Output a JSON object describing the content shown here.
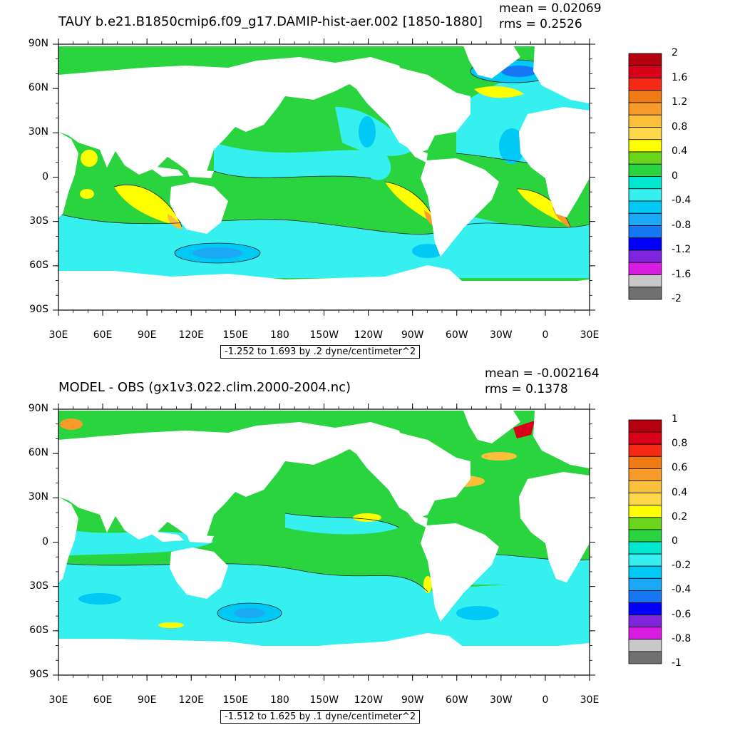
{
  "panels": [
    {
      "title": "TAUY b.e21.B1850cmip6.f09_g17.DAMIP-hist-aer.002 [1850-1880]",
      "mean": "mean = 0.02069",
      "rms": "rms = 0.2526",
      "info": "-1.252 to 1.693 by .2 dyne/centimeter^2",
      "colorbar": {
        "labels": [
          "2",
          "1.6",
          "1.2",
          "0.8",
          "0.4",
          "0",
          "-0.4",
          "-0.8",
          "-1.2",
          "-1.6",
          "-2"
        ],
        "colors": [
          "#b4000f",
          "#d9001a",
          "#f52a14",
          "#f07a14",
          "#f79c2a",
          "#fbbf3a",
          "#ffd84a",
          "#ffff00",
          "#6ad51a",
          "#29d43e",
          "#00e9d0",
          "#36f0f0",
          "#00c9f5",
          "#1ba8f4",
          "#1677f5",
          "#0000fa",
          "#7f23dc",
          "#d91ce2",
          "#c8c8c8",
          "#707070"
        ]
      }
    },
    {
      "title": "MODEL - OBS (gx1v3.022.clim.2000-2004.nc)",
      "mean": "mean = -0.002164",
      "rms": "rms = 0.1378",
      "info": "-1.512 to 1.625 by .1 dyne/centimeter^2",
      "colorbar": {
        "labels": [
          "1",
          "0.8",
          "0.6",
          "0.4",
          "0.2",
          "0",
          "-0.2",
          "-0.4",
          "-0.6",
          "-0.8",
          "-1"
        ],
        "colors": [
          "#b4000f",
          "#d9001a",
          "#f52a14",
          "#f07a14",
          "#f79c2a",
          "#fbbf3a",
          "#ffd84a",
          "#ffff00",
          "#6ad51a",
          "#29d43e",
          "#00e9d0",
          "#36f0f0",
          "#00c9f5",
          "#1ba8f4",
          "#1677f5",
          "#0000fa",
          "#7f23dc",
          "#d91ce2",
          "#c8c8c8",
          "#707070"
        ]
      }
    }
  ],
  "axes": {
    "lat_labels": [
      "90N",
      "60N",
      "30N",
      "0",
      "30S",
      "60S",
      "90S"
    ],
    "lon_labels": [
      "30E",
      "60E",
      "90E",
      "120E",
      "150E",
      "180",
      "150W",
      "120W",
      "90W",
      "60W",
      "30W",
      "0",
      "30E"
    ]
  },
  "colors": {
    "ocean_base": "#29d43e",
    "land": "#ffffff"
  }
}
